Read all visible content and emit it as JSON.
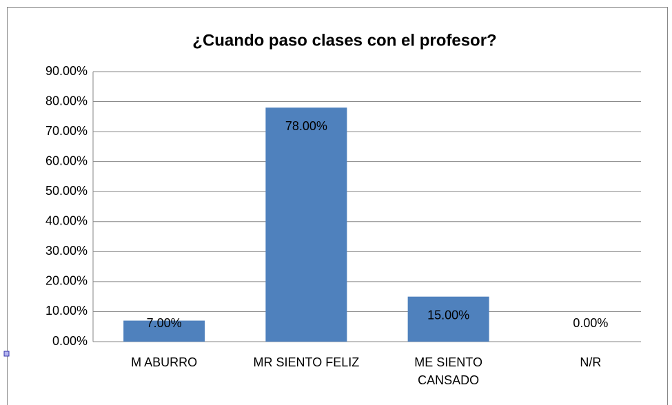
{
  "chart_data": {
    "type": "bar",
    "title": "¿Cuando paso clases con el profesor?",
    "categories": [
      "M ABURRO",
      "MR SIENTO FELIZ",
      "ME SIENTO CANSADO",
      "N/R"
    ],
    "values": [
      7,
      78,
      15,
      0
    ],
    "value_labels": [
      "7.00%",
      "78.00%",
      "15.00%",
      "0.00%"
    ],
    "color": "#4f81bd",
    "ylim": [
      0,
      90
    ],
    "yticks": [
      {
        "value": 0,
        "label": "0.00%"
      },
      {
        "value": 10,
        "label": "10.00%"
      },
      {
        "value": 20,
        "label": "20.00%"
      },
      {
        "value": 30,
        "label": "30.00%"
      },
      {
        "value": 40,
        "label": "40.00%"
      },
      {
        "value": 50,
        "label": "50.00%"
      },
      {
        "value": 60,
        "label": "60.00%"
      },
      {
        "value": 70,
        "label": "70.00%"
      },
      {
        "value": 80,
        "label": "80.00%"
      },
      {
        "value": 90,
        "label": "90.00%"
      }
    ],
    "grid": true
  }
}
